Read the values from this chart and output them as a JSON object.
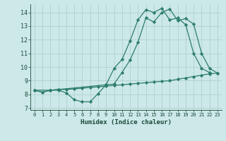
{
  "line1_x": [
    0,
    1,
    2,
    3,
    4,
    5,
    6,
    7,
    8,
    9,
    10,
    11,
    12,
    13,
    14,
    15,
    16,
    17,
    18,
    19,
    20,
    21,
    22
  ],
  "line1_y": [
    8.3,
    8.15,
    8.3,
    8.3,
    8.1,
    7.6,
    7.45,
    7.45,
    8.05,
    8.7,
    9.9,
    10.55,
    11.9,
    13.45,
    14.2,
    14.0,
    14.3,
    13.45,
    13.6,
    13.1,
    11.0,
    9.9,
    9.6
  ],
  "line2_x": [
    0,
    1,
    2,
    3,
    4,
    5,
    6,
    7,
    8,
    9,
    10,
    11,
    12,
    13,
    14,
    15,
    16,
    17,
    18,
    19,
    20,
    21,
    22,
    23
  ],
  "line2_y": [
    8.3,
    8.15,
    8.3,
    8.35,
    8.35,
    8.4,
    8.45,
    8.5,
    8.55,
    8.6,
    8.65,
    8.7,
    8.75,
    8.8,
    8.85,
    8.9,
    8.95,
    9.0,
    9.1,
    9.2,
    9.3,
    9.4,
    9.5,
    9.55
  ],
  "line3_x": [
    0,
    2,
    3,
    9,
    10,
    11,
    12,
    13,
    14,
    15,
    16,
    17,
    18,
    19,
    20,
    21,
    22,
    23
  ],
  "line3_y": [
    8.3,
    8.3,
    8.35,
    8.7,
    8.75,
    9.6,
    10.5,
    11.8,
    13.6,
    13.3,
    14.0,
    14.25,
    13.4,
    13.55,
    13.15,
    11.0,
    9.9,
    9.55
  ],
  "color": "#2d7d6b",
  "bg_color": "#cce8e8",
  "grid_color": "#aacccc",
  "xlabel": "Humidex (Indice chaleur)",
  "xlim": [
    -0.5,
    23.5
  ],
  "ylim": [
    6.85,
    14.6
  ],
  "yticks": [
    7,
    8,
    9,
    10,
    11,
    12,
    13,
    14
  ],
  "xticks": [
    0,
    1,
    2,
    3,
    4,
    5,
    6,
    7,
    8,
    9,
    10,
    11,
    12,
    13,
    14,
    15,
    16,
    17,
    18,
    19,
    20,
    21,
    22,
    23
  ],
  "marker": "D",
  "markersize": 2.2,
  "linewidth": 0.9
}
